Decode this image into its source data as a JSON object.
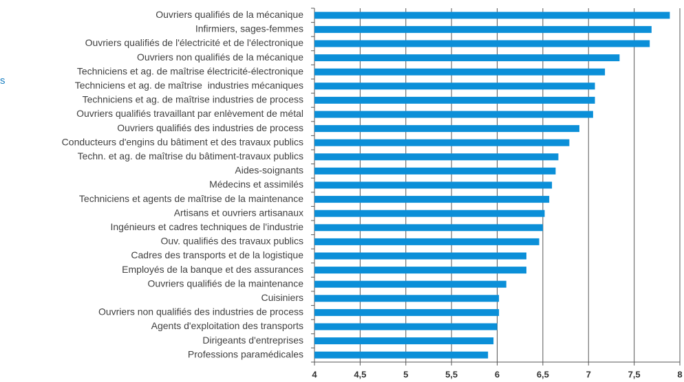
{
  "chart_data": {
    "type": "bar",
    "orientation": "horizontal",
    "annotations": [
      "s"
    ],
    "categories": [
      "Ouvriers qualifiés de la mécanique",
      "Infirmiers, sages-femmes",
      "Ouvriers qualifiés de l'électricité et de l'électronique",
      "Ouvriers non qualifiés de la mécanique",
      "Techniciens et ag. de maîtrise électricité-électronique",
      "Techniciens et ag. de maîtrise  industries mécaniques",
      "Techniciens et ag. de maîtrise industries de process",
      "Ouvriers qualifiés travaillant par enlèvement de métal",
      "Ouvriers qualifiés des industries de process",
      "Conducteurs d'engins du bâtiment et des travaux publics",
      "Techn. et ag. de maîtrise du bâtiment-travaux publics",
      "Aides-soignants",
      "Médecins et assimilés",
      "Techniciens et agents de maîtrise de la maintenance",
      "Artisans et ouvriers artisanaux",
      "Ingénieurs et cadres techniques de l'industrie",
      "Ouv. qualifiés des travaux publics",
      "Cadres des transports et de la logistique",
      "Employés de la banque et des assurances",
      "Ouvriers qualifiés de la maintenance",
      "Cuisiniers",
      "Ouvriers non qualifiés des industries de process",
      "Agents d'exploitation des transports",
      "Dirigeants d'entreprises",
      "Professions paramédicales"
    ],
    "values": [
      7.89,
      7.69,
      7.67,
      7.34,
      7.18,
      7.07,
      7.07,
      7.05,
      6.9,
      6.79,
      6.67,
      6.64,
      6.6,
      6.57,
      6.52,
      6.5,
      6.46,
      6.32,
      6.32,
      6.1,
      6.02,
      6.02,
      6.0,
      5.96,
      5.9
    ],
    "color": "#0b8fd8",
    "xlim": [
      4,
      8
    ],
    "xticks": [
      4,
      {
        "value": 4.5,
        "label": "4,5"
      },
      5,
      {
        "value": 5.5,
        "label": "5,5"
      },
      6,
      {
        "value": 6.5,
        "label": "6,5"
      },
      7,
      {
        "value": 7.5,
        "label": "7,5"
      },
      8
    ],
    "grid": true
  }
}
